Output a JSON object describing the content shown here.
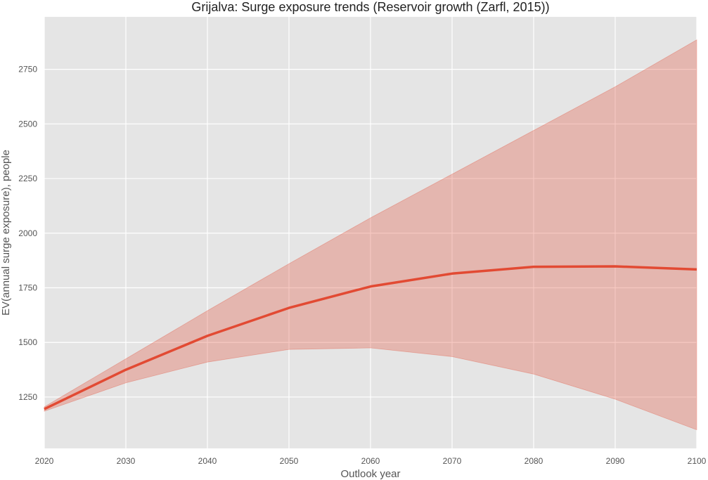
{
  "chart_data": {
    "type": "line",
    "title": "Grijalva: Surge exposure trends (Reservoir growth (Zarfl, 2015))",
    "xlabel": "Outlook year",
    "ylabel": "EV(annual surge exposure), people",
    "xlim": [
      2020,
      2100
    ],
    "ylim": [
      1015,
      2990
    ],
    "x_ticks": [
      2020,
      2030,
      2040,
      2050,
      2060,
      2070,
      2080,
      2090,
      2100
    ],
    "y_ticks": [
      1250,
      1500,
      1750,
      2000,
      2250,
      2500,
      2750
    ],
    "grid": true,
    "legend": "none",
    "x": [
      2020,
      2030,
      2040,
      2050,
      2060,
      2070,
      2080,
      2090,
      2100
    ],
    "series": [
      {
        "values": [
          1195,
          1375,
          1530,
          1658,
          1756,
          1815,
          1846,
          1848,
          1834
        ],
        "lower": [
          1185,
          1315,
          1410,
          1468,
          1475,
          1435,
          1355,
          1240,
          1100
        ],
        "upper": [
          1205,
          1425,
          1645,
          1860,
          2070,
          2270,
          2470,
          2670,
          2885
        ],
        "color": "#e24a33",
        "band_color": "#e24a33"
      }
    ],
    "colors": {
      "plot_background": "#e5e5e5",
      "grid": "#ffffff"
    }
  }
}
